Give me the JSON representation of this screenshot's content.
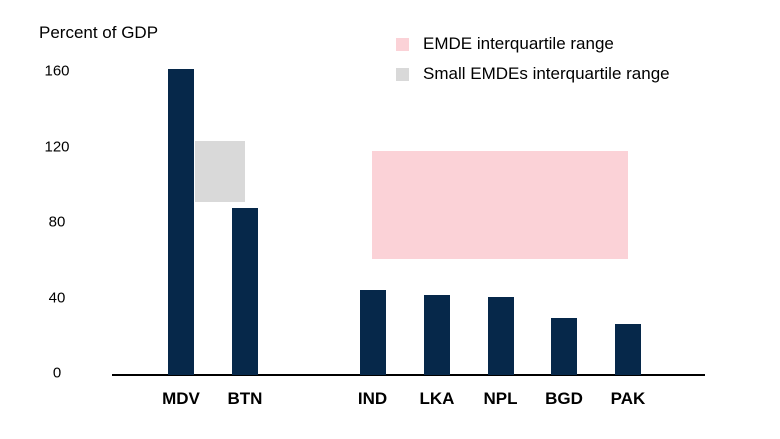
{
  "title": "Percent of GDP",
  "legend": {
    "items": [
      {
        "label": "EMDE interquartile range",
        "color": "#fbd2d7"
      },
      {
        "label": "Small EMDEs interquartile range",
        "color": "#d9d9d9"
      }
    ]
  },
  "chart_data": {
    "type": "bar",
    "title": "Percent of GDP",
    "categories": [
      "MDV",
      "BTN",
      "IND",
      "LKA",
      "NPL",
      "BGD",
      "PAK"
    ],
    "values": [
      161,
      88,
      45,
      42,
      41,
      30,
      27
    ],
    "bar_color": "#06284a",
    "xlabel": "",
    "ylabel": "Percent of GDP",
    "ylim": [
      0,
      175
    ],
    "yticks": [
      0,
      40,
      80,
      120,
      160
    ],
    "grid": false,
    "legend_position": "top-right",
    "ranges": [
      {
        "name": "EMDE interquartile range",
        "low": 61,
        "high": 118,
        "color": "#fbd2d7",
        "spans_categories": [
          "IND",
          "PAK"
        ]
      },
      {
        "name": "Small EMDEs interquartile range",
        "low": 91,
        "high": 123,
        "color": "#d9d9d9",
        "spans_categories": [
          "MDV",
          "BTN"
        ]
      }
    ]
  }
}
